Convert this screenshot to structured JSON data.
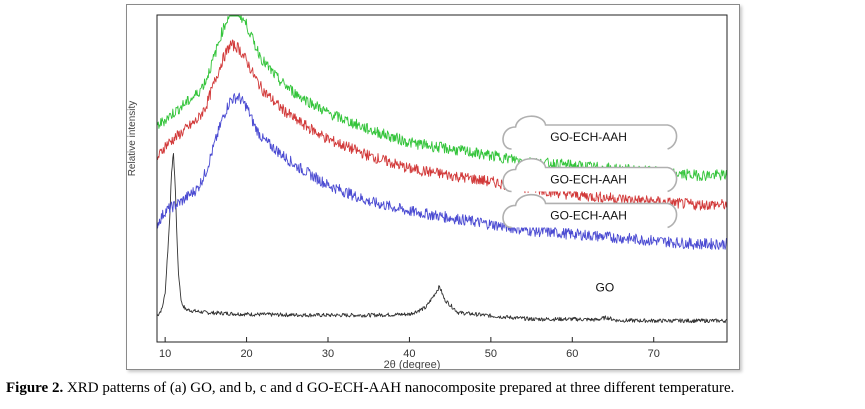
{
  "caption": {
    "label": "Figure 2.",
    "text": " XRD patterns of (a) GO, and b, c and d GO-ECH-AAH nanocomposite prepared at three different temperature."
  },
  "chart_data": {
    "type": "line",
    "title": "",
    "xlabel": "2θ (degree)",
    "ylabel": "Relative intensity",
    "xlim": [
      9,
      79
    ],
    "ylim": [
      0,
      100
    ],
    "xticks": [
      10,
      20,
      30,
      40,
      50,
      60,
      70
    ],
    "grid": false,
    "y_tick_labels": false,
    "series": [
      {
        "name": "GO",
        "color": "#333333",
        "x": [
          9,
          9.6,
          10,
          10.5,
          10.8,
          11.0,
          11.2,
          11.6,
          12.0,
          12.5,
          13.5,
          15,
          20,
          25,
          30,
          35,
          40,
          42,
          43.2,
          43.7,
          44.3,
          46,
          50,
          55,
          60,
          63,
          64.2,
          65.5,
          70,
          75,
          79
        ],
        "y": [
          8,
          10,
          15,
          35,
          52,
          58,
          50,
          22,
          12,
          10,
          9.5,
          9,
          8.5,
          8.3,
          8.2,
          8.2,
          8.5,
          10.5,
          15,
          17,
          13,
          9,
          8,
          7,
          7,
          6.8,
          7.5,
          6.6,
          6.5,
          6.5,
          6.5
        ]
      },
      {
        "name": "GO-ECH-AAH",
        "color": "#4b4bd2",
        "x": [
          9,
          10,
          12,
          14,
          15,
          16,
          17,
          18,
          19,
          20,
          21,
          22,
          24,
          26,
          30,
          35,
          40,
          45,
          50,
          55,
          60,
          65,
          70,
          75,
          79
        ],
        "y": [
          36,
          40,
          43,
          47,
          52,
          60,
          68,
          74,
          75,
          72,
          66,
          62,
          58,
          54,
          48,
          43,
          40,
          38,
          36,
          34,
          33,
          32,
          31,
          30,
          30
        ]
      },
      {
        "name": "GO-ECH-AAH",
        "color": "#d23a3a",
        "x": [
          9,
          10,
          12,
          14,
          15,
          16,
          17,
          18,
          19,
          20,
          21,
          22,
          24,
          26,
          30,
          35,
          40,
          45,
          50,
          55,
          60,
          65,
          70,
          75,
          79
        ],
        "y": [
          56,
          60,
          64,
          68,
          72,
          79,
          86,
          91,
          90,
          86,
          81,
          77,
          72,
          68,
          62,
          57,
          53,
          51,
          49,
          47,
          45,
          44,
          43,
          42,
          42
        ]
      },
      {
        "name": "GO-ECH-AAH",
        "color": "#33c43a",
        "x": [
          9,
          10,
          12,
          14,
          15,
          16,
          17,
          18,
          19,
          20,
          21,
          22,
          24,
          26,
          30,
          35,
          40,
          45,
          50,
          55,
          60,
          65,
          70,
          75,
          79
        ],
        "y": [
          66,
          68,
          72,
          76,
          80,
          87,
          95,
          101,
          101,
          97,
          91,
          86,
          80,
          76,
          70,
          65,
          61,
          59,
          57,
          55,
          54,
          53,
          52,
          51,
          51
        ]
      }
    ],
    "annotations": [
      {
        "text": "GO",
        "x": 64,
        "y": 17
      },
      {
        "text": "GO-ECH-AAH",
        "x": 62,
        "y": 63
      },
      {
        "text": "GO-ECH-AAH",
        "x": 62,
        "y": 50
      },
      {
        "text": "GO-ECH-AAH",
        "x": 62,
        "y": 39
      }
    ]
  }
}
